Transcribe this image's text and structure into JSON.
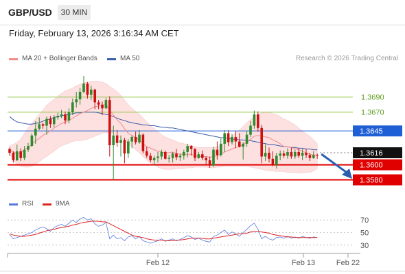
{
  "header": {
    "symbol": "GBP/USD",
    "timeframe": "30 MIN",
    "datetime": "Friday, February 13, 2026 3:16:34 AM CET"
  },
  "legend": {
    "ma20": "MA 20 + Bollinger Bands",
    "ma50": "MA 50",
    "credit": "Research © 2026 Trading Central"
  },
  "rsi_legend": {
    "rsi": "RSI",
    "ma9": "9MA"
  },
  "colors": {
    "bullish": "#2e8b2e",
    "bearish": "#cc1111",
    "ma20": "#f08a8a",
    "bollinger_fill": "#fde0e0",
    "ma50": "#3a5ba8",
    "resistance": "#8cc63f",
    "pivot": "#1f5fd6",
    "support": "#e00000",
    "rsi": "#5577dd",
    "rsi_ma": "#dd2222",
    "forecast_arrow": "#2a5fb0"
  },
  "chart_data": [
    {
      "type": "candlestick",
      "title": "",
      "ylim": [
        1.3555,
        1.3728
      ],
      "x_ticks": [
        "Feb 12",
        "Feb 13",
        "Feb 22"
      ],
      "current_price": "1.3616",
      "levels": [
        {
          "value": 1.369,
          "label": "1.3690",
          "kind": "resistance"
        },
        {
          "value": 1.367,
          "label": "1.3670",
          "kind": "resistance"
        },
        {
          "value": 1.3645,
          "label": "1.3645",
          "kind": "pivot"
        },
        {
          "value": 1.36,
          "label": "1.3600",
          "kind": "support"
        },
        {
          "value": 1.358,
          "label": "1.3580",
          "kind": "support"
        }
      ],
      "forecast": {
        "from": 1.3616,
        "to": 1.3585
      },
      "candles": [
        [
          1.3621,
          1.3623,
          1.3612,
          1.3616
        ],
        [
          1.3616,
          1.3618,
          1.3603,
          1.3606
        ],
        [
          1.3606,
          1.3627,
          1.3605,
          1.3618
        ],
        [
          1.3618,
          1.3622,
          1.3605,
          1.3609
        ],
        [
          1.3609,
          1.3625,
          1.3606,
          1.362
        ],
        [
          1.362,
          1.3629,
          1.3617,
          1.3625
        ],
        [
          1.3625,
          1.3642,
          1.3624,
          1.3639
        ],
        [
          1.3639,
          1.3658,
          1.3628,
          1.3648
        ],
        [
          1.3648,
          1.3663,
          1.3646,
          1.3654
        ],
        [
          1.3654,
          1.3656,
          1.3648,
          1.3652
        ],
        [
          1.3652,
          1.3664,
          1.364,
          1.3661
        ],
        [
          1.3661,
          1.3665,
          1.3649,
          1.3654
        ],
        [
          1.3654,
          1.3666,
          1.365,
          1.3663
        ],
        [
          1.3663,
          1.3669,
          1.366,
          1.3665
        ],
        [
          1.3665,
          1.3673,
          1.3662,
          1.3667
        ],
        [
          1.3667,
          1.3671,
          1.3654,
          1.3659
        ],
        [
          1.3659,
          1.3675,
          1.3655,
          1.367
        ],
        [
          1.367,
          1.3688,
          1.3666,
          1.3683
        ],
        [
          1.3683,
          1.3697,
          1.3676,
          1.3687
        ],
        [
          1.3687,
          1.3702,
          1.368,
          1.3697
        ],
        [
          1.3697,
          1.3718,
          1.3695,
          1.3708
        ],
        [
          1.3708,
          1.371,
          1.3688,
          1.3693
        ],
        [
          1.3693,
          1.3705,
          1.3686,
          1.37
        ],
        [
          1.37,
          1.3701,
          1.3674,
          1.3683
        ],
        [
          1.3683,
          1.3686,
          1.3674,
          1.368
        ],
        [
          1.368,
          1.3684,
          1.3666,
          1.3675
        ],
        [
          1.3675,
          1.3689,
          1.3674,
          1.3686
        ],
        [
          1.3686,
          1.3691,
          1.3611,
          1.3626
        ],
        [
          1.3626,
          1.3652,
          1.358,
          1.3639
        ],
        [
          1.3639,
          1.3646,
          1.3624,
          1.3629
        ],
        [
          1.3629,
          1.3639,
          1.3611,
          1.3633
        ],
        [
          1.3633,
          1.3636,
          1.3602,
          1.3615
        ],
        [
          1.3615,
          1.3634,
          1.3609,
          1.3631
        ],
        [
          1.3631,
          1.3639,
          1.3622,
          1.3637
        ],
        [
          1.3637,
          1.3644,
          1.3627,
          1.363
        ],
        [
          1.363,
          1.3646,
          1.3628,
          1.364
        ],
        [
          1.364,
          1.3642,
          1.3615,
          1.3618
        ],
        [
          1.3618,
          1.3624,
          1.3609,
          1.3612
        ],
        [
          1.3612,
          1.3616,
          1.3603,
          1.3606
        ],
        [
          1.3606,
          1.3612,
          1.3599,
          1.3609
        ],
        [
          1.3609,
          1.3617,
          1.3603,
          1.3611
        ],
        [
          1.3611,
          1.362,
          1.3607,
          1.3617
        ],
        [
          1.3617,
          1.3619,
          1.3607,
          1.3608
        ],
        [
          1.3608,
          1.3613,
          1.3603,
          1.3609
        ],
        [
          1.3609,
          1.3617,
          1.3603,
          1.3615
        ],
        [
          1.3615,
          1.3621,
          1.3606,
          1.361
        ],
        [
          1.361,
          1.3615,
          1.3605,
          1.3612
        ],
        [
          1.3612,
          1.362,
          1.3607,
          1.3617
        ],
        [
          1.3617,
          1.3628,
          1.361,
          1.3625
        ],
        [
          1.3625,
          1.3626,
          1.3612,
          1.3621
        ],
        [
          1.3621,
          1.3622,
          1.3605,
          1.3609
        ],
        [
          1.3609,
          1.3617,
          1.3608,
          1.3614
        ],
        [
          1.3614,
          1.3619,
          1.3606,
          1.3609
        ],
        [
          1.3609,
          1.3611,
          1.3601,
          1.3606
        ],
        [
          1.3606,
          1.3611,
          1.3596,
          1.3599
        ],
        [
          1.3599,
          1.3624,
          1.3597,
          1.362
        ],
        [
          1.362,
          1.3631,
          1.3607,
          1.3613
        ],
        [
          1.3613,
          1.3635,
          1.3611,
          1.3628
        ],
        [
          1.3628,
          1.3646,
          1.3617,
          1.3642
        ],
        [
          1.3642,
          1.3646,
          1.3625,
          1.363
        ],
        [
          1.363,
          1.3641,
          1.3627,
          1.3637
        ],
        [
          1.3637,
          1.3645,
          1.3622,
          1.3631
        ],
        [
          1.3631,
          1.3642,
          1.3623,
          1.3624
        ],
        [
          1.3624,
          1.363,
          1.3607,
          1.3628
        ],
        [
          1.3628,
          1.3645,
          1.3624,
          1.364
        ],
        [
          1.364,
          1.3658,
          1.3637,
          1.3652
        ],
        [
          1.3652,
          1.3672,
          1.3648,
          1.3667
        ],
        [
          1.3667,
          1.3671,
          1.3644,
          1.3649
        ],
        [
          1.3649,
          1.3653,
          1.3602,
          1.3611
        ],
        [
          1.3611,
          1.3627,
          1.3605,
          1.3616
        ],
        [
          1.3616,
          1.3623,
          1.3603,
          1.3608
        ],
        [
          1.3608,
          1.3618,
          1.3598,
          1.36
        ],
        [
          1.36,
          1.3616,
          1.3595,
          1.3612
        ],
        [
          1.3612,
          1.3619,
          1.3606,
          1.3615
        ],
        [
          1.3615,
          1.3619,
          1.3609,
          1.3612
        ],
        [
          1.3612,
          1.3622,
          1.3608,
          1.3617
        ],
        [
          1.3617,
          1.3623,
          1.3608,
          1.3611
        ],
        [
          1.3611,
          1.362,
          1.3608,
          1.3617
        ],
        [
          1.3617,
          1.3622,
          1.3609,
          1.3612
        ],
        [
          1.3612,
          1.3621,
          1.3606,
          1.3616
        ],
        [
          1.3616,
          1.3621,
          1.3609,
          1.3613
        ],
        [
          1.3613,
          1.3616,
          1.3605,
          1.3609
        ],
        [
          1.3609,
          1.3618,
          1.3608,
          1.3613
        ],
        [
          1.3613,
          1.3615,
          1.3608,
          1.3612
        ]
      ],
      "ma20": [
        1.362,
        1.3617,
        1.3615,
        1.3616,
        1.362,
        1.3623,
        1.3627,
        1.3632,
        1.3635,
        1.3639,
        1.3642,
        1.3645,
        1.3649,
        1.3652,
        1.3655,
        1.3657,
        1.3659,
        1.3662,
        1.3665,
        1.3668,
        1.367,
        1.3672,
        1.3675,
        1.3677,
        1.3678,
        1.3679,
        1.368,
        1.3673,
        1.3666,
        1.366,
        1.3655,
        1.3648,
        1.3642,
        1.3639,
        1.3636,
        1.3633,
        1.3628,
        1.3624,
        1.3622,
        1.362,
        1.3618,
        1.3617,
        1.3616,
        1.3616,
        1.3617,
        1.3615,
        1.3614,
        1.3614,
        1.3614,
        1.3614,
        1.3612,
        1.3611,
        1.3611,
        1.3611,
        1.361,
        1.3611,
        1.3612,
        1.3614,
        1.3617,
        1.3619,
        1.3621,
        1.3623,
        1.3624,
        1.3627,
        1.363,
        1.3634,
        1.3638,
        1.3639,
        1.3638,
        1.3637,
        1.3636,
        1.3633,
        1.3631,
        1.3628,
        1.3624,
        1.3624,
        1.3623,
        1.3621,
        1.362,
        1.3618,
        1.3616,
        1.3614,
        1.3613,
        1.3613
      ],
      "bollinger": {
        "upper": [
          1.3626,
          1.3627,
          1.363,
          1.3634,
          1.3642,
          1.3649,
          1.3655,
          1.3661,
          1.3667,
          1.3673,
          1.3679,
          1.3683,
          1.3687,
          1.3691,
          1.3695,
          1.3698,
          1.37,
          1.3702,
          1.3705,
          1.3707,
          1.3709,
          1.371,
          1.3711,
          1.3711,
          1.3711,
          1.371,
          1.3708,
          1.3704,
          1.3701,
          1.3697,
          1.3692,
          1.3686,
          1.368,
          1.3675,
          1.3671,
          1.3667,
          1.3662,
          1.3657,
          1.3652,
          1.3648,
          1.3644,
          1.364,
          1.3637,
          1.3635,
          1.3633,
          1.3631,
          1.3629,
          1.3628,
          1.3627,
          1.3626,
          1.3624,
          1.3623,
          1.3623,
          1.3623,
          1.3623,
          1.3623,
          1.3624,
          1.3626,
          1.363,
          1.3634,
          1.3638,
          1.3642,
          1.3646,
          1.3651,
          1.3656,
          1.366,
          1.3664,
          1.3667,
          1.3669,
          1.367,
          1.367,
          1.3668,
          1.3667,
          1.3664,
          1.3661,
          1.3659,
          1.3656,
          1.3653,
          1.3649,
          1.3645,
          1.3641,
          1.3638,
          1.3633,
          1.3628
        ],
        "lower": [
          1.3614,
          1.3606,
          1.3601,
          1.3598,
          1.3597,
          1.3597,
          1.3598,
          1.3601,
          1.3604,
          1.3608,
          1.3611,
          1.3615,
          1.3618,
          1.3622,
          1.3625,
          1.3627,
          1.3629,
          1.3631,
          1.3632,
          1.3632,
          1.3633,
          1.3634,
          1.3636,
          1.3638,
          1.364,
          1.3642,
          1.3643,
          1.3642,
          1.3641,
          1.3638,
          1.3635,
          1.3632,
          1.3628,
          1.3624,
          1.362,
          1.3616,
          1.3611,
          1.3606,
          1.3603,
          1.36,
          1.3597,
          1.3595,
          1.3594,
          1.3594,
          1.3594,
          1.3595,
          1.3595,
          1.3595,
          1.3596,
          1.3596,
          1.3597,
          1.3597,
          1.3597,
          1.3597,
          1.3596,
          1.3596,
          1.3597,
          1.3597,
          1.3598,
          1.3598,
          1.3598,
          1.3598,
          1.3598,
          1.3598,
          1.3598,
          1.3597,
          1.3596,
          1.3595,
          1.3594,
          1.3593,
          1.3592,
          1.3592,
          1.3591,
          1.3591,
          1.3591,
          1.359,
          1.359,
          1.359,
          1.3589,
          1.3589,
          1.359,
          1.359,
          1.3592,
          1.3595
        ]
      },
      "ma50": [
        1.3664,
        1.366,
        1.3657,
        1.3656,
        1.3655,
        1.3654,
        1.3654,
        1.3655,
        1.3656,
        1.3658,
        1.366,
        1.3661,
        1.3663,
        1.3664,
        1.3665,
        1.3666,
        1.3667,
        1.3668,
        1.3669,
        1.3669,
        1.367,
        1.367,
        1.367,
        1.367,
        1.3669,
        1.3668,
        1.3667,
        1.3666,
        1.3664,
        1.3662,
        1.366,
        1.3659,
        1.3657,
        1.3656,
        1.3655,
        1.3654,
        1.3653,
        1.3653,
        1.3652,
        1.3652,
        1.3651,
        1.365,
        1.365,
        1.3649,
        1.3649,
        1.3648,
        1.3647,
        1.3646,
        1.3645,
        1.3644,
        1.3643,
        1.3642,
        1.3641,
        1.364,
        1.3639,
        1.3638,
        1.3637,
        1.3636,
        1.3636,
        1.3635,
        1.3634,
        1.3634,
        1.3633,
        1.3633,
        1.3632,
        1.3632,
        1.3631,
        1.363,
        1.3629,
        1.3628,
        1.3627,
        1.3627,
        1.3626,
        1.3625,
        1.3624,
        1.3624,
        1.3623,
        1.3623,
        1.3622,
        1.3622,
        1.3621,
        1.3621,
        1.362,
        1.362
      ]
    },
    {
      "type": "line",
      "ylim": [
        20,
        80
      ],
      "y_ticks": [
        "70",
        "50",
        "30"
      ],
      "series": [
        {
          "name": "RSI",
          "values": [
            47,
            40,
            42,
            44,
            46,
            48,
            50,
            54,
            57,
            59,
            56,
            52,
            58,
            61,
            63,
            60,
            65,
            70,
            66,
            72,
            74,
            70,
            72,
            64,
            60,
            62,
            66,
            40,
            46,
            40,
            42,
            37,
            43,
            45,
            40,
            44,
            37,
            35,
            33,
            35,
            37,
            40,
            36,
            38,
            40,
            37,
            39,
            42,
            45,
            43,
            39,
            41,
            38,
            36,
            35,
            44,
            46,
            50,
            54,
            47,
            51,
            48,
            44,
            50,
            55,
            61,
            65,
            55,
            40,
            44,
            40,
            38,
            42,
            43,
            41,
            44,
            41,
            43,
            41,
            44,
            42,
            41,
            43,
            42
          ]
        },
        {
          "name": "9MA",
          "values": [
            48,
            46,
            45,
            44,
            44,
            45,
            46,
            47,
            49,
            51,
            53,
            54,
            55,
            57,
            58,
            59,
            60,
            62,
            63,
            65,
            66,
            67,
            68,
            68,
            68,
            67,
            67,
            64,
            61,
            58,
            55,
            52,
            49,
            46,
            44,
            43,
            42,
            40,
            39,
            38,
            38,
            38,
            37,
            37,
            37,
            38,
            38,
            39,
            40,
            41,
            41,
            41,
            41,
            40,
            40,
            41,
            42,
            43,
            44,
            45,
            46,
            47,
            48,
            48,
            49,
            51,
            52,
            52,
            51,
            50,
            49,
            47,
            46,
            45,
            44,
            43,
            43,
            42,
            42,
            42,
            42,
            42,
            42,
            42
          ]
        }
      ]
    }
  ]
}
